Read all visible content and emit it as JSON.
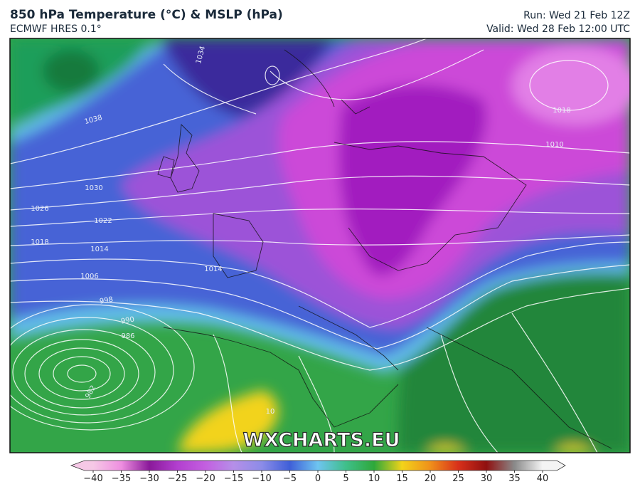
{
  "header": {
    "title": "850 hPa Temperature (°C) & MSLP (hPa)",
    "subtitle": "ECMWF HRES 0.1°",
    "run": "Run: Wed 21 Feb 12Z",
    "valid": "Valid: Wed 28 Feb 12:00 UTC"
  },
  "map": {
    "watermark": "WXCHARTS.EU",
    "isobar_labels": [
      1034,
      1038,
      1030,
      1026,
      1022,
      1018,
      1014,
      1006,
      998,
      990,
      986,
      982,
      1014,
      1018,
      1010,
      10
    ]
  },
  "colorbar": {
    "ticks": [
      {
        "value": -40,
        "label": "−40"
      },
      {
        "value": -35,
        "label": "−35"
      },
      {
        "value": -30,
        "label": "−30"
      },
      {
        "value": -25,
        "label": "−25"
      },
      {
        "value": -20,
        "label": "−20"
      },
      {
        "value": -15,
        "label": "−15"
      },
      {
        "value": -10,
        "label": "−10"
      },
      {
        "value": -5,
        "label": "−5"
      },
      0,
      5,
      10,
      15,
      20,
      25,
      30,
      35,
      40
    ],
    "colors": [
      "#f6c8e6",
      "#ee8fe0",
      "#8a1a9a",
      "#b23fcf",
      "#c35fe0",
      "#b58fe8",
      "#8c8ce8",
      "#3f5fd8",
      "#6ec4f0",
      "#3fbf8a",
      "#2ea83a",
      "#f2d31a",
      "#f0901a",
      "#d8301a",
      "#901010",
      "#8a8a8a",
      "#f4f4f4"
    ]
  }
}
